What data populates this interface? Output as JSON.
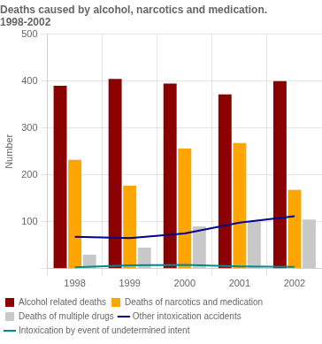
{
  "chart_data": {
    "type": "bar",
    "title": [
      "Deaths caused by alcohol, narcotics and medication.",
      "1998-2002"
    ],
    "y_label": "Number",
    "categories": [
      1998,
      1999,
      2000,
      2001,
      2002
    ],
    "series": [
      {
        "name": "Alcohol related deaths",
        "color": "#8B0000",
        "values": [
          390,
          405,
          395,
          372,
          400
        ]
      },
      {
        "name": "Deaths of narcotics and medication",
        "color": "#FFA500",
        "values": [
          232,
          177,
          256,
          268,
          168
        ]
      },
      {
        "name": "Deaths of multiple drugs",
        "color": "#C8C8C8",
        "values": [
          30,
          45,
          90,
          100,
          105
        ]
      },
      {
        "name": "Other intoxication accidents",
        "color": "#00008B",
        "type": "line",
        "values": [
          68,
          65,
          75,
          98,
          112
        ]
      },
      {
        "name": "Intoxication by event of undetermined intent",
        "color": "#008B8B",
        "type": "line",
        "values": [
          3,
          7,
          8,
          5,
          4
        ]
      }
    ],
    "ylim": [
      0,
      500
    ],
    "yticks": [
      {
        "value": 0,
        "label": ""
      },
      100,
      200,
      300,
      400,
      500
    ],
    "grid": true,
    "legend": "bottom"
  }
}
